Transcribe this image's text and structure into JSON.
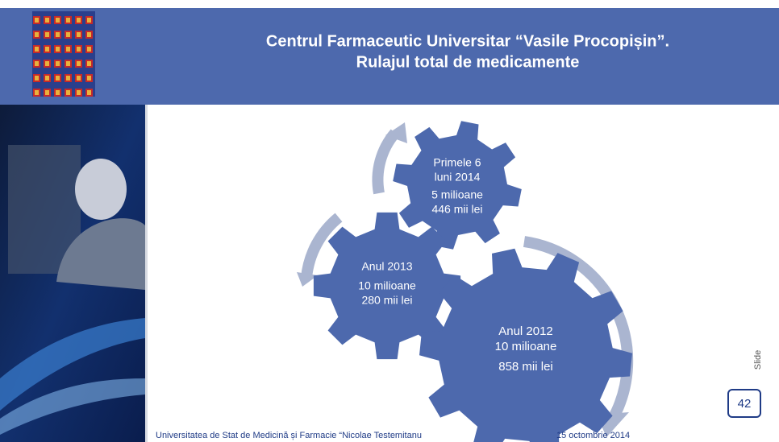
{
  "header": {
    "title_lines": [
      "Centrul Farmaceutic Universitar “Vasile Procopișin”.",
      "Rulajul total de medicamente"
    ]
  },
  "nodes": [
    {
      "lines": [
        "Primele 6",
        "luni 2014",
        "5 milioane",
        "446 mii lei"
      ]
    },
    {
      "lines": [
        "Anul 2013",
        "10 milioane",
        "280 mii lei"
      ]
    },
    {
      "lines": [
        "Anul 2012",
        "10 milioane",
        "858 mii lei"
      ]
    }
  ],
  "footer": {
    "institution": "Universitatea de Stat de Medicină și Farmacie “Nicolae Testemitanu",
    "date": "15 octombrie 2014",
    "slide_label": "Slide",
    "slide_number": "42"
  }
}
